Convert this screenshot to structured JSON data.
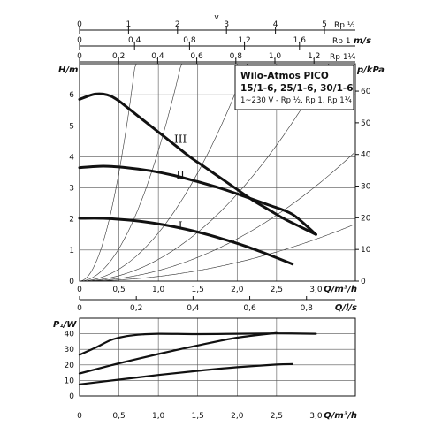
{
  "scales": {
    "v_label": "v",
    "rp_half_ticks": [
      "0",
      "1",
      "2",
      "3",
      "4",
      "5"
    ],
    "rp_half_label": "Rp ½",
    "ms_ticks": [
      "0",
      "0,4",
      "0,8",
      "1,2",
      "1,6"
    ],
    "rp1_label": "Rp 1",
    "ms_unit": "m/s",
    "rp114_ticks": [
      "0",
      "0,2",
      "0,4",
      "0,6",
      "0,8",
      "1,0",
      "1,2"
    ],
    "rp114_label": "Rp 1¼"
  },
  "legend": {
    "title": "Wilo-Atmos PICO",
    "models": "15/1-6, 25/1-6, 30/1-6",
    "spec": "1~230 V - Rp ½, Rp 1, Rp 1¼"
  },
  "chart_data": [
    {
      "type": "line",
      "ylabel": "H/m",
      "ylabel_right": "p/kPa",
      "xlabel": "Q/m³/h",
      "xlabel_secondary": "Q/l/s",
      "xlim": [
        0,
        3.5
      ],
      "ylim": [
        0,
        7
      ],
      "y_ticks": [
        "0",
        "1",
        "2",
        "3",
        "4",
        "5",
        "6"
      ],
      "x_ticks": [
        "0",
        "0,5",
        "1,0",
        "1,5",
        "2,0",
        "2,5",
        "3,0"
      ],
      "ls_ticks": [
        "0",
        "0,2",
        "0,4",
        "0,6",
        "0,8"
      ],
      "kpa_ticks": [
        "0",
        "10",
        "20",
        "30",
        "40",
        "50",
        "60"
      ],
      "series": [
        {
          "name": "III",
          "x": [
            0,
            0.1,
            0.2,
            0.3,
            0.4,
            0.5,
            0.6,
            0.8,
            1.0,
            1.2,
            1.4,
            1.6,
            1.8,
            2.0,
            2.2,
            2.4,
            2.6,
            2.8,
            3.0
          ],
          "y": [
            5.85,
            5.95,
            6.02,
            6.02,
            5.95,
            5.8,
            5.6,
            5.2,
            4.8,
            4.4,
            4.0,
            3.65,
            3.3,
            2.95,
            2.6,
            2.3,
            2.0,
            1.75,
            1.5
          ]
        },
        {
          "name": "II",
          "x": [
            0,
            0.3,
            0.6,
            0.9,
            1.2,
            1.5,
            1.8,
            2.1,
            2.4,
            2.7,
            3.0
          ],
          "y": [
            3.65,
            3.7,
            3.65,
            3.55,
            3.4,
            3.2,
            2.98,
            2.72,
            2.45,
            2.15,
            1.5
          ]
        },
        {
          "name": "I",
          "x": [
            0,
            0.3,
            0.6,
            0.9,
            1.2,
            1.5,
            1.8,
            2.1,
            2.4,
            2.7
          ],
          "y": [
            2.02,
            2.02,
            1.97,
            1.88,
            1.75,
            1.58,
            1.37,
            1.13,
            0.85,
            0.55
          ]
        }
      ],
      "curve_labels": [
        "III",
        "II",
        "I"
      ]
    },
    {
      "type": "line",
      "ylabel": "P₁/W",
      "xlabel": "Q/m³/h",
      "xlim": [
        0,
        3.5
      ],
      "ylim": [
        0,
        50
      ],
      "y_ticks": [
        "0",
        "10",
        "20",
        "30",
        "40"
      ],
      "x_ticks": [
        "0",
        "0,5",
        "1,0",
        "1,5",
        "2,0",
        "2,5",
        "3,0"
      ],
      "series": [
        {
          "name": "III",
          "x": [
            0,
            0.2,
            0.4,
            0.6,
            0.8,
            1.0,
            1.5,
            2.0,
            2.5,
            3.0
          ],
          "y": [
            26.5,
            31,
            36,
            38.5,
            39.6,
            40,
            39.8,
            40,
            40.2,
            40
          ]
        },
        {
          "name": "II",
          "x": [
            0,
            0.5,
            1.0,
            1.5,
            2.0,
            2.5
          ],
          "y": [
            14.5,
            21,
            27,
            32.5,
            37.5,
            40.5
          ]
        },
        {
          "name": "I",
          "x": [
            0,
            0.5,
            1.0,
            1.5,
            2.0,
            2.5,
            2.7
          ],
          "y": [
            7.5,
            10.5,
            13.5,
            16.2,
            18.5,
            20.2,
            20.5
          ]
        }
      ]
    }
  ]
}
